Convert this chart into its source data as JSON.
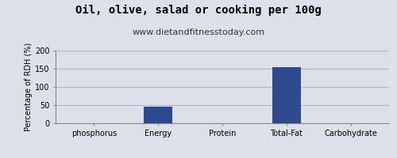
{
  "title": "Oil, olive, salad or cooking per 100g",
  "subtitle": "www.dietandfitnesstoday.com",
  "categories": [
    "phosphorus",
    "Energy",
    "Protein",
    "Total-Fat",
    "Carbohydrate"
  ],
  "values": [
    0,
    46,
    0,
    155,
    0
  ],
  "bar_color": "#2e4a8e",
  "ylabel": "Percentage of RDH (%)",
  "ylim": [
    0,
    200
  ],
  "yticks": [
    0,
    50,
    100,
    150,
    200
  ],
  "background_color": "#dce0e8",
  "plot_bg_color": "#dce0e8",
  "title_fontsize": 10,
  "subtitle_fontsize": 8,
  "tick_fontsize": 7,
  "ylabel_fontsize": 7,
  "grid_color": "#b0b8c8",
  "bar_width": 0.45
}
